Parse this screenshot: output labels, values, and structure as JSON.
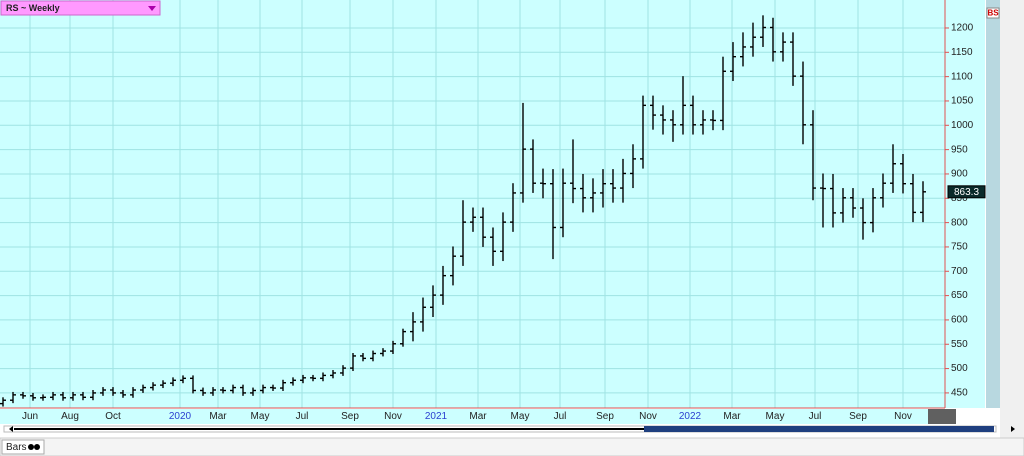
{
  "chart_data": {
    "type": "ohlc",
    "title": "RS ~ Weekly",
    "tab": "Bars",
    "badge": "BS",
    "color": "#000000",
    "background": "#ccffff",
    "grid": true,
    "ylim": [
      419,
      1257.5
    ],
    "yticks": [
      450,
      500,
      550,
      600,
      650,
      700,
      750,
      800,
      850,
      900,
      950,
      1000,
      1050,
      1100,
      1150,
      1200
    ],
    "xlim": [
      -0.3,
      94.2
    ],
    "xticks": [
      {
        "value": 2.7,
        "label": "Jun"
      },
      {
        "value": 6.7,
        "label": "Aug"
      },
      {
        "value": 11,
        "label": "Oct"
      },
      {
        "value": 17.7,
        "label": "2020"
      },
      {
        "value": 21.5,
        "label": "Mar"
      },
      {
        "value": 25.7,
        "label": "May"
      },
      {
        "value": 29.9,
        "label": "Jul"
      },
      {
        "value": 34.7,
        "label": "Sep"
      },
      {
        "value": 39,
        "label": "Nov"
      },
      {
        "value": 43.3,
        "label": "2021"
      },
      {
        "value": 47.5,
        "label": "Mar"
      },
      {
        "value": 51.7,
        "label": "May"
      },
      {
        "value": 55.7,
        "label": "Jul"
      },
      {
        "value": 60.2,
        "label": "Sep"
      },
      {
        "value": 64.5,
        "label": "Nov"
      },
      {
        "value": 68.7,
        "label": "2022"
      },
      {
        "value": 72.9,
        "label": "Mar"
      },
      {
        "value": 77.2,
        "label": "May"
      },
      {
        "value": 81.2,
        "label": "Jul"
      },
      {
        "value": 85.5,
        "label": "Sep"
      },
      {
        "value": 90,
        "label": "Nov"
      }
    ],
    "open": [
      428,
      435,
      446,
      444,
      440,
      441,
      446,
      440,
      446,
      441,
      450,
      456,
      450,
      446,
      456,
      461,
      466,
      470,
      476,
      480,
      455,
      450,
      456,
      455,
      461,
      450,
      455,
      461,
      460,
      471,
      476,
      481,
      480,
      486,
      491,
      501,
      526,
      521,
      531,
      536,
      551,
      576,
      596,
      626,
      651,
      691,
      731,
      801,
      811,
      770,
      741,
      801,
      861,
      951,
      881,
      880,
      790,
      881,
      870,
      851,
      861,
      880,
      871,
      901,
      931,
      1041,
      1021,
      1011,
      1001,
      1041,
      1001,
      1011,
      1010,
      1111,
      1141,
      1161,
      1181,
      1201,
      1151,
      1171,
      1101,
      1001,
      871,
      870,
      820,
      851,
      830,
      800,
      851,
      881,
      921,
      880,
      821
    ],
    "high": [
      441,
      452,
      452,
      450,
      447,
      452,
      452,
      452,
      452,
      456,
      462,
      462,
      456,
      462,
      467,
      472,
      476,
      482,
      486,
      486,
      461,
      462,
      462,
      467,
      467,
      461,
      467,
      467,
      477,
      482,
      487,
      487,
      492,
      497,
      507,
      532,
      532,
      537,
      542,
      557,
      582,
      616,
      646,
      671,
      711,
      751,
      846,
      831,
      831,
      790,
      821,
      881,
      1046,
      971,
      911,
      910,
      911,
      971,
      900,
      891,
      910,
      910,
      931,
      961,
      1061,
      1061,
      1041,
      1031,
      1101,
      1061,
      1031,
      1031,
      1141,
      1171,
      1191,
      1211,
      1226,
      1221,
      1191,
      1191,
      1131,
      1031,
      901,
      900,
      871,
      871,
      850,
      871,
      901,
      961,
      941,
      900,
      885
    ],
    "low": [
      422,
      429,
      438,
      434,
      434,
      435,
      434,
      434,
      435,
      435,
      444,
      444,
      440,
      440,
      450,
      455,
      460,
      464,
      470,
      449,
      444,
      444,
      449,
      449,
      444,
      444,
      449,
      454,
      454,
      465,
      470,
      474,
      474,
      480,
      485,
      495,
      515,
      515,
      525,
      530,
      545,
      556,
      576,
      606,
      631,
      671,
      711,
      781,
      750,
      711,
      721,
      781,
      841,
      861,
      850,
      725,
      770,
      840,
      821,
      821,
      831,
      841,
      841,
      871,
      911,
      991,
      981,
      966,
      981,
      981,
      981,
      990,
      990,
      1091,
      1121,
      1141,
      1161,
      1131,
      1131,
      1081,
      961,
      846,
      790,
      790,
      800,
      810,
      765,
      780,
      831,
      861,
      860,
      801,
      801
    ],
    "close": [
      435,
      446,
      444,
      440,
      441,
      446,
      440,
      446,
      441,
      450,
      456,
      450,
      446,
      456,
      461,
      466,
      470,
      476,
      480,
      455,
      450,
      456,
      455,
      461,
      450,
      455,
      461,
      460,
      471,
      476,
      481,
      480,
      486,
      491,
      501,
      526,
      521,
      531,
      536,
      551,
      576,
      596,
      626,
      651,
      691,
      731,
      801,
      811,
      770,
      741,
      801,
      861,
      951,
      881,
      880,
      790,
      881,
      870,
      851,
      861,
      880,
      871,
      901,
      931,
      1041,
      1021,
      1011,
      1001,
      1041,
      1001,
      1011,
      1010,
      1111,
      1141,
      1161,
      1181,
      1201,
      1151,
      1171,
      1101,
      1001,
      871,
      870,
      820,
      851,
      830,
      800,
      851,
      881,
      921,
      880,
      821,
      863.3
    ]
  }
}
